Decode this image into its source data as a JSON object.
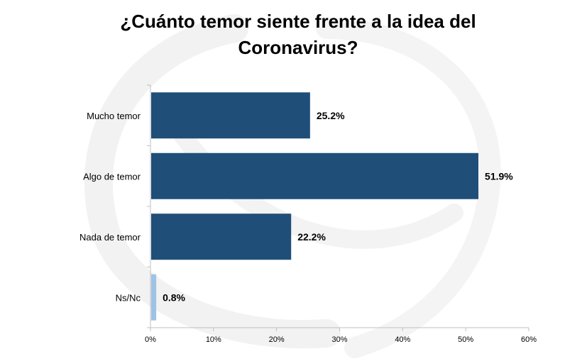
{
  "chart_data": {
    "type": "bar",
    "orientation": "horizontal",
    "title_lines": [
      "¿Cuánto temor siente frente a la idea del",
      "Coronavirus?"
    ],
    "categories": [
      "Mucho temor",
      "Algo de temor",
      "Nada de temor",
      "Ns/Nc"
    ],
    "values": [
      25.2,
      51.9,
      22.2,
      0.8
    ],
    "value_labels": [
      "25.2%",
      "51.9%",
      "22.2%",
      "0.8%"
    ],
    "colors": [
      "#1f4e79",
      "#1f4e79",
      "#1f4e79",
      "#9dc3e6"
    ],
    "xlim": [
      0,
      60
    ],
    "x_ticks": [
      0,
      10,
      20,
      30,
      40,
      50,
      60
    ],
    "x_tick_labels": [
      "0%",
      "10%",
      "20%",
      "30%",
      "40%",
      "50%",
      "60%"
    ],
    "grid": false,
    "legend": "none"
  }
}
